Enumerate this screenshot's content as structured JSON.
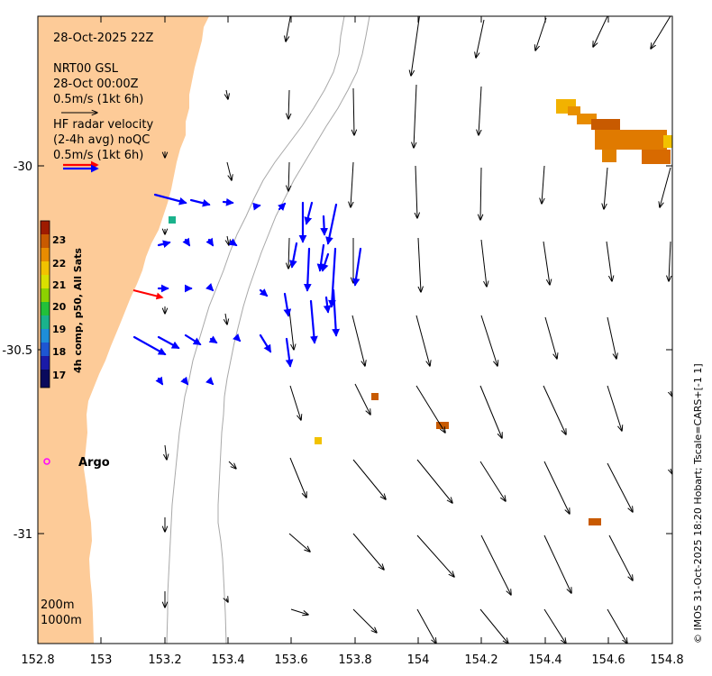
{
  "header": {
    "date_line": "28-Oct-2025 22Z",
    "model_line1": "NRT00 GSL",
    "model_line2": "28-Oct 00:00Z",
    "model_scale": "0.5m/s (1kt 6h)",
    "radar_line1": "HF radar velocity",
    "radar_line2": "(2-4h avg) noQC",
    "radar_scale": "0.5m/s (1kt 6h)"
  },
  "colorbar": {
    "label": "4h comp, p50, All Sats",
    "ticks": [
      "23",
      "22",
      "21",
      "20",
      "19",
      "18",
      "17"
    ],
    "colors": [
      "#9e1b00",
      "#c85a00",
      "#e88c00",
      "#f2c200",
      "#d9e000",
      "#8cd200",
      "#22c03a",
      "#1ab28c",
      "#1e8ed8",
      "#1e56d2",
      "#1a1aa8",
      "#0a0a5c"
    ]
  },
  "argo": {
    "label": "Argo"
  },
  "bathymetry": {
    "line1": "200m",
    "line2": "1000m"
  },
  "credit": "© IMOS 31-Oct-2025 18:20 Hobart; Tscale=CARS+[-1 1]",
  "axes": {
    "x_ticks": [
      "152.8",
      "153",
      "153.2",
      "153.4",
      "153.6",
      "153.8",
      "154",
      "154.2",
      "154.4",
      "154.6",
      "154.8"
    ],
    "y_ticks": [
      "-30",
      "-30.5",
      "-31"
    ]
  },
  "colors": {
    "land": "#fdcb98",
    "model_arrow": "#000000",
    "radar_arrow": "#0000ff",
    "radar_outlier": "#ff0000",
    "argo": "#ff00ff"
  }
}
